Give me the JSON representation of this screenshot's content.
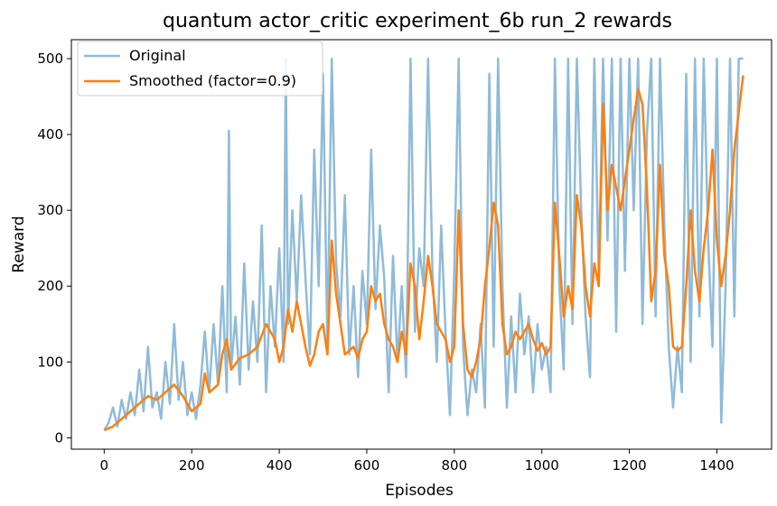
{
  "chart_data": {
    "type": "line",
    "title": "quantum actor_critic experiment_6b run_2 rewards",
    "xlabel": "Episodes",
    "ylabel": "Reward",
    "xlim": [
      -75,
      1525
    ],
    "ylim": [
      -15,
      525
    ],
    "x_ticks": [
      0,
      200,
      400,
      600,
      800,
      1000,
      1200,
      1400
    ],
    "y_ticks": [
      0,
      100,
      200,
      300,
      400,
      500
    ],
    "grid": false,
    "legend_position": "top-left",
    "series": [
      {
        "name": "Original",
        "color": "#8fbbd9",
        "values": [
          [
            0,
            10
          ],
          [
            10,
            20
          ],
          [
            20,
            40
          ],
          [
            30,
            15
          ],
          [
            40,
            50
          ],
          [
            50,
            25
          ],
          [
            60,
            60
          ],
          [
            70,
            30
          ],
          [
            80,
            90
          ],
          [
            90,
            35
          ],
          [
            100,
            120
          ],
          [
            110,
            40
          ],
          [
            120,
            60
          ],
          [
            130,
            25
          ],
          [
            140,
            100
          ],
          [
            150,
            45
          ],
          [
            160,
            150
          ],
          [
            170,
            50
          ],
          [
            180,
            100
          ],
          [
            190,
            30
          ],
          [
            200,
            60
          ],
          [
            210,
            25
          ],
          [
            220,
            70
          ],
          [
            230,
            140
          ],
          [
            240,
            60
          ],
          [
            250,
            150
          ],
          [
            260,
            70
          ],
          [
            270,
            200
          ],
          [
            280,
            60
          ],
          [
            285,
            405
          ],
          [
            290,
            90
          ],
          [
            300,
            160
          ],
          [
            310,
            70
          ],
          [
            320,
            230
          ],
          [
            330,
            90
          ],
          [
            340,
            180
          ],
          [
            350,
            100
          ],
          [
            360,
            280
          ],
          [
            370,
            60
          ],
          [
            380,
            200
          ],
          [
            390,
            120
          ],
          [
            400,
            250
          ],
          [
            410,
            100
          ],
          [
            415,
            500
          ],
          [
            420,
            150
          ],
          [
            430,
            300
          ],
          [
            440,
            180
          ],
          [
            450,
            320
          ],
          [
            460,
            210
          ],
          [
            470,
            110
          ],
          [
            480,
            380
          ],
          [
            490,
            200
          ],
          [
            500,
            480
          ],
          [
            510,
            120
          ],
          [
            520,
            500
          ],
          [
            530,
            230
          ],
          [
            540,
            160
          ],
          [
            550,
            320
          ],
          [
            560,
            110
          ],
          [
            570,
            200
          ],
          [
            580,
            80
          ],
          [
            590,
            220
          ],
          [
            600,
            150
          ],
          [
            610,
            380
          ],
          [
            620,
            170
          ],
          [
            630,
            280
          ],
          [
            640,
            210
          ],
          [
            650,
            60
          ],
          [
            660,
            240
          ],
          [
            670,
            100
          ],
          [
            680,
            200
          ],
          [
            690,
            80
          ],
          [
            700,
            500
          ],
          [
            710,
            140
          ],
          [
            720,
            250
          ],
          [
            730,
            200
          ],
          [
            740,
            500
          ],
          [
            750,
            220
          ],
          [
            760,
            100
          ],
          [
            770,
            280
          ],
          [
            780,
            140
          ],
          [
            790,
            30
          ],
          [
            800,
            220
          ],
          [
            810,
            500
          ],
          [
            820,
            120
          ],
          [
            830,
            30
          ],
          [
            840,
            90
          ],
          [
            850,
            60
          ],
          [
            860,
            150
          ],
          [
            870,
            40
          ],
          [
            880,
            480
          ],
          [
            890,
            120
          ],
          [
            900,
            500
          ],
          [
            910,
            200
          ],
          [
            920,
            40
          ],
          [
            930,
            160
          ],
          [
            940,
            60
          ],
          [
            950,
            190
          ],
          [
            960,
            110
          ],
          [
            970,
            160
          ],
          [
            980,
            60
          ],
          [
            990,
            150
          ],
          [
            1000,
            90
          ],
          [
            1010,
            120
          ],
          [
            1020,
            60
          ],
          [
            1030,
            500
          ],
          [
            1040,
            200
          ],
          [
            1050,
            90
          ],
          [
            1060,
            500
          ],
          [
            1070,
            150
          ],
          [
            1080,
            500
          ],
          [
            1090,
            300
          ],
          [
            1100,
            160
          ],
          [
            1110,
            80
          ],
          [
            1120,
            500
          ],
          [
            1130,
            210
          ],
          [
            1140,
            500
          ],
          [
            1150,
            260
          ],
          [
            1160,
            500
          ],
          [
            1170,
            140
          ],
          [
            1180,
            500
          ],
          [
            1190,
            220
          ],
          [
            1200,
            500
          ],
          [
            1210,
            300
          ],
          [
            1220,
            500
          ],
          [
            1230,
            150
          ],
          [
            1240,
            400
          ],
          [
            1250,
            500
          ],
          [
            1260,
            160
          ],
          [
            1270,
            500
          ],
          [
            1280,
            280
          ],
          [
            1290,
            120
          ],
          [
            1300,
            40
          ],
          [
            1310,
            120
          ],
          [
            1320,
            60
          ],
          [
            1330,
            480
          ],
          [
            1340,
            100
          ],
          [
            1350,
            500
          ],
          [
            1360,
            160
          ],
          [
            1370,
            500
          ],
          [
            1380,
            260
          ],
          [
            1390,
            120
          ],
          [
            1400,
            500
          ],
          [
            1410,
            20
          ],
          [
            1420,
            200
          ],
          [
            1430,
            500
          ],
          [
            1440,
            160
          ],
          [
            1450,
            500
          ],
          [
            1460,
            500
          ]
        ]
      },
      {
        "name": "Smoothed (factor=0.9)",
        "color": "#ff7f0e",
        "values": [
          [
            0,
            10
          ],
          [
            20,
            15
          ],
          [
            40,
            25
          ],
          [
            60,
            35
          ],
          [
            80,
            45
          ],
          [
            100,
            55
          ],
          [
            120,
            50
          ],
          [
            140,
            60
          ],
          [
            160,
            70
          ],
          [
            180,
            55
          ],
          [
            200,
            35
          ],
          [
            220,
            45
          ],
          [
            230,
            85
          ],
          [
            240,
            60
          ],
          [
            260,
            70
          ],
          [
            270,
            110
          ],
          [
            280,
            130
          ],
          [
            290,
            90
          ],
          [
            310,
            105
          ],
          [
            330,
            110
          ],
          [
            350,
            120
          ],
          [
            370,
            150
          ],
          [
            390,
            130
          ],
          [
            400,
            100
          ],
          [
            410,
            120
          ],
          [
            420,
            170
          ],
          [
            430,
            140
          ],
          [
            440,
            180
          ],
          [
            450,
            150
          ],
          [
            460,
            120
          ],
          [
            470,
            95
          ],
          [
            480,
            110
          ],
          [
            490,
            140
          ],
          [
            500,
            150
          ],
          [
            510,
            110
          ],
          [
            520,
            260
          ],
          [
            530,
            190
          ],
          [
            540,
            150
          ],
          [
            550,
            110
          ],
          [
            560,
            115
          ],
          [
            570,
            120
          ],
          [
            580,
            105
          ],
          [
            590,
            130
          ],
          [
            600,
            140
          ],
          [
            610,
            200
          ],
          [
            620,
            180
          ],
          [
            630,
            190
          ],
          [
            640,
            150
          ],
          [
            650,
            130
          ],
          [
            660,
            120
          ],
          [
            670,
            100
          ],
          [
            680,
            140
          ],
          [
            690,
            110
          ],
          [
            700,
            230
          ],
          [
            710,
            200
          ],
          [
            720,
            130
          ],
          [
            730,
            180
          ],
          [
            740,
            240
          ],
          [
            750,
            200
          ],
          [
            760,
            150
          ],
          [
            770,
            140
          ],
          [
            780,
            130
          ],
          [
            790,
            100
          ],
          [
            800,
            120
          ],
          [
            810,
            300
          ],
          [
            820,
            150
          ],
          [
            830,
            90
          ],
          [
            840,
            80
          ],
          [
            850,
            100
          ],
          [
            860,
            130
          ],
          [
            870,
            200
          ],
          [
            880,
            250
          ],
          [
            890,
            310
          ],
          [
            900,
            280
          ],
          [
            910,
            150
          ],
          [
            920,
            110
          ],
          [
            930,
            120
          ],
          [
            940,
            140
          ],
          [
            950,
            130
          ],
          [
            960,
            140
          ],
          [
            970,
            150
          ],
          [
            980,
            130
          ],
          [
            990,
            115
          ],
          [
            1000,
            125
          ],
          [
            1010,
            110
          ],
          [
            1020,
            120
          ],
          [
            1030,
            310
          ],
          [
            1040,
            240
          ],
          [
            1050,
            160
          ],
          [
            1060,
            200
          ],
          [
            1070,
            170
          ],
          [
            1080,
            320
          ],
          [
            1090,
            280
          ],
          [
            1100,
            200
          ],
          [
            1110,
            160
          ],
          [
            1120,
            230
          ],
          [
            1130,
            200
          ],
          [
            1140,
            440
          ],
          [
            1150,
            300
          ],
          [
            1160,
            360
          ],
          [
            1170,
            330
          ],
          [
            1180,
            300
          ],
          [
            1190,
            340
          ],
          [
            1200,
            380
          ],
          [
            1210,
            420
          ],
          [
            1220,
            460
          ],
          [
            1230,
            440
          ],
          [
            1240,
            330
          ],
          [
            1250,
            180
          ],
          [
            1260,
            220
          ],
          [
            1270,
            360
          ],
          [
            1280,
            240
          ],
          [
            1290,
            200
          ],
          [
            1300,
            120
          ],
          [
            1310,
            115
          ],
          [
            1320,
            120
          ],
          [
            1330,
            200
          ],
          [
            1340,
            300
          ],
          [
            1350,
            220
          ],
          [
            1360,
            180
          ],
          [
            1370,
            250
          ],
          [
            1380,
            300
          ],
          [
            1390,
            380
          ],
          [
            1400,
            260
          ],
          [
            1410,
            200
          ],
          [
            1420,
            240
          ],
          [
            1430,
            300
          ],
          [
            1440,
            380
          ],
          [
            1450,
            430
          ],
          [
            1460,
            478
          ]
        ]
      }
    ]
  }
}
